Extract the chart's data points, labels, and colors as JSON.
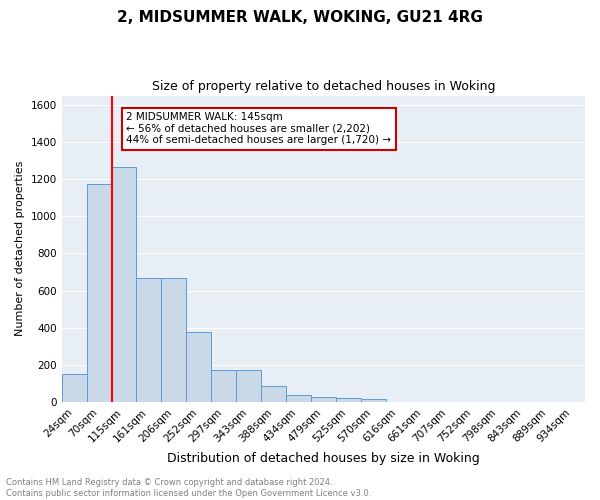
{
  "title": "2, MIDSUMMER WALK, WOKING, GU21 4RG",
  "subtitle": "Size of property relative to detached houses in Woking",
  "xlabel": "Distribution of detached houses by size in Woking",
  "ylabel": "Number of detached properties",
  "categories": [
    "24sqm",
    "70sqm",
    "115sqm",
    "161sqm",
    "206sqm",
    "252sqm",
    "297sqm",
    "343sqm",
    "388sqm",
    "434sqm",
    "479sqm",
    "525sqm",
    "570sqm",
    "616sqm",
    "661sqm",
    "707sqm",
    "752sqm",
    "798sqm",
    "843sqm",
    "889sqm",
    "934sqm"
  ],
  "values": [
    150,
    1175,
    1265,
    670,
    670,
    375,
    170,
    170,
    85,
    35,
    25,
    20,
    15,
    0,
    0,
    0,
    0,
    0,
    0,
    0,
    0
  ],
  "bar_color": "#c9d9e8",
  "bar_edge_color": "#5b9bd5",
  "red_line_x": 2.0,
  "annotation_text": "2 MIDSUMMER WALK: 145sqm\n← 56% of detached houses are smaller (2,202)\n44% of semi-detached houses are larger (1,720) →",
  "annotation_box_color": "#ffffff",
  "annotation_box_edge": "#cc0000",
  "ylim": [
    0,
    1650
  ],
  "yticks": [
    0,
    200,
    400,
    600,
    800,
    1000,
    1200,
    1400,
    1600
  ],
  "footer_line1": "Contains HM Land Registry data © Crown copyright and database right 2024.",
  "footer_line2": "Contains public sector information licensed under the Open Government Licence v3.0.",
  "bg_color": "#e8eef5",
  "grid_color": "#ffffff",
  "title_fontsize": 11,
  "subtitle_fontsize": 9,
  "ylabel_fontsize": 8,
  "xlabel_fontsize": 9,
  "tick_fontsize": 7.5,
  "footer_fontsize": 6,
  "ann_fontsize": 7.5
}
